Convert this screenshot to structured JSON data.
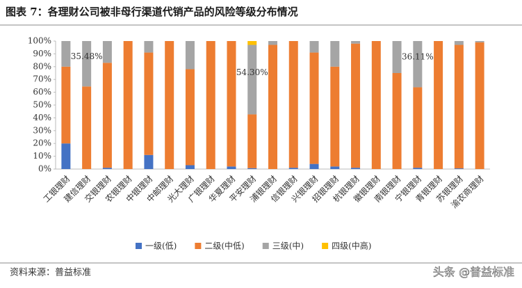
{
  "chart_data": {
    "type": "stacked_bar",
    "title": "图表 7：各理财公司被非母行渠道代销产品的风险等级分布情况",
    "categories": [
      "工银理财",
      "建信理财",
      "交银理财",
      "农银理财",
      "中银理财",
      "中邮理财",
      "光大理财",
      "广银理财",
      "华夏理财",
      "平安理财",
      "浦银理财",
      "信银理财",
      "兴银理财",
      "招银理财",
      "杭银理财",
      "徽银理财",
      "南银理财",
      "宁银理财",
      "青银理财",
      "苏银理财",
      "渝农商理财"
    ],
    "series": [
      {
        "name": "一级(低)",
        "color": "#4472c4",
        "values": [
          20,
          0,
          1,
          0,
          11,
          0,
          3,
          0,
          2,
          0.7,
          0,
          1,
          4,
          2,
          1,
          0,
          0,
          1,
          0,
          0.5,
          0
        ]
      },
      {
        "name": "二级(中低)",
        "color": "#ed7d31",
        "values": [
          60,
          64.52,
          82,
          100,
          80,
          100,
          75,
          100,
          98,
          42,
          97,
          99,
          87,
          78,
          97,
          100,
          75,
          62.89,
          100,
          96.5,
          99
        ]
      },
      {
        "name": "三级(中)",
        "color": "#a5a5a5",
        "values": [
          20,
          35.48,
          17,
          0,
          9,
          0,
          22,
          0,
          0,
          54.3,
          3,
          0,
          9,
          20,
          2,
          0,
          25,
          36.11,
          0,
          3,
          1
        ],
        "value_labels": [
          null,
          "35.48%",
          null,
          null,
          null,
          null,
          null,
          null,
          null,
          "54.30%",
          null,
          null,
          null,
          null,
          null,
          null,
          null,
          "36.11%",
          null,
          null,
          null
        ]
      },
      {
        "name": "四级(中高)",
        "color": "#ffc000",
        "values": [
          0,
          0,
          0,
          0,
          0,
          0,
          0,
          0,
          0,
          3,
          0,
          0,
          0,
          0,
          0,
          0,
          0,
          0,
          0,
          0,
          0
        ]
      }
    ],
    "ylim": [
      0,
      100
    ],
    "yticks": [
      {
        "value": 0,
        "label": "0%"
      },
      {
        "value": 10,
        "label": "10%"
      },
      {
        "value": 20,
        "label": "20%"
      },
      {
        "value": 30,
        "label": "30%"
      },
      {
        "value": 40,
        "label": "40%"
      },
      {
        "value": 50,
        "label": "50%"
      },
      {
        "value": 60,
        "label": "60%"
      },
      {
        "value": 70,
        "label": "70%"
      },
      {
        "value": 80,
        "label": "80%"
      },
      {
        "value": 90,
        "label": "90%"
      },
      {
        "value": 100,
        "label": "100%"
      }
    ],
    "legend": "bottom",
    "source": "资料来源：普益标准",
    "watermark": "头条 @普益标准"
  }
}
